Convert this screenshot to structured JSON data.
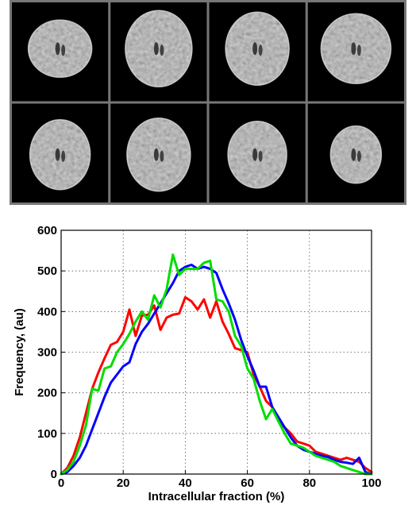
{
  "figure": {
    "montage": {
      "rows": 2,
      "cols": 4,
      "slices": [
        "slice-1",
        "slice-2",
        "slice-3",
        "slice-4",
        "slice-5",
        "slice-6",
        "slice-7",
        "slice-8"
      ]
    }
  },
  "chart_data": {
    "type": "line",
    "xlabel": "Intracellular fraction (%)",
    "ylabel": "Frequency, (au)",
    "xlim": [
      0,
      100
    ],
    "ylim": [
      0,
      600
    ],
    "xticks": [
      0,
      20,
      40,
      60,
      80,
      100
    ],
    "yticks": [
      0,
      100,
      200,
      300,
      400,
      500,
      600
    ],
    "grid": true,
    "x": [
      0,
      2,
      4,
      6,
      8,
      10,
      12,
      14,
      16,
      18,
      20,
      22,
      24,
      26,
      28,
      30,
      32,
      34,
      36,
      38,
      40,
      42,
      44,
      46,
      48,
      50,
      52,
      54,
      56,
      58,
      60,
      62,
      64,
      66,
      68,
      70,
      72,
      74,
      76,
      78,
      80,
      82,
      84,
      86,
      88,
      90,
      92,
      94,
      96,
      98,
      100
    ],
    "series": [
      {
        "color": "#ff0000",
        "values": [
          0,
          15,
          45,
          90,
          150,
          210,
          250,
          285,
          318,
          325,
          350,
          405,
          340,
          390,
          392,
          415,
          355,
          385,
          392,
          395,
          435,
          425,
          405,
          430,
          385,
          425,
          375,
          345,
          310,
          305,
          300,
          245,
          215,
          180,
          165,
          130,
          115,
          100,
          80,
          75,
          70,
          55,
          50,
          45,
          40,
          35,
          40,
          35,
          30,
          15,
          5
        ]
      },
      {
        "color": "#0000ff",
        "values": [
          0,
          5,
          20,
          40,
          70,
          110,
          150,
          190,
          225,
          245,
          265,
          275,
          320,
          350,
          370,
          395,
          420,
          445,
          470,
          500,
          510,
          515,
          505,
          510,
          505,
          495,
          455,
          420,
          380,
          330,
          290,
          255,
          215,
          215,
          165,
          140,
          115,
          90,
          70,
          60,
          55,
          50,
          45,
          42,
          35,
          30,
          28,
          25,
          40,
          5,
          0
        ]
      },
      {
        "color": "#00dd00",
        "values": [
          0,
          10,
          30,
          70,
          120,
          210,
          205,
          260,
          265,
          300,
          320,
          345,
          375,
          400,
          380,
          440,
          410,
          455,
          540,
          490,
          505,
          505,
          505,
          520,
          525,
          430,
          425,
          400,
          340,
          315,
          260,
          235,
          180,
          135,
          160,
          130,
          100,
          75,
          70,
          65,
          55,
          45,
          40,
          35,
          30,
          20,
          15,
          10,
          5,
          0,
          0
        ]
      }
    ]
  }
}
